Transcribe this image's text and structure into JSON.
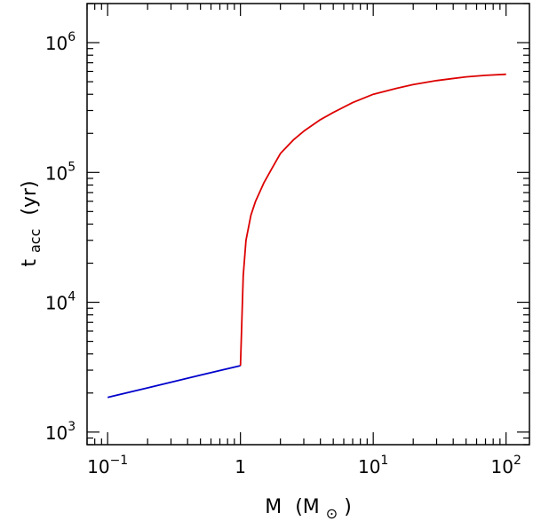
{
  "chart_data": {
    "type": "line",
    "xscale": "log",
    "yscale": "log",
    "xlim": [
      0.07,
      150
    ],
    "ylim": [
      800,
      2000000
    ],
    "xlabel": {
      "base": "M",
      "open": "(M",
      "subscript": "⊙",
      "close": ")"
    },
    "ylabel": {
      "base": "t",
      "subscript": "acc",
      "unit": "(yr)"
    },
    "x_ticks": [
      {
        "value": 0.1,
        "base": "10",
        "exp": "−1"
      },
      {
        "value": 1,
        "base": "1",
        "exp": ""
      },
      {
        "value": 10,
        "base": "10",
        "exp": "1"
      },
      {
        "value": 100,
        "base": "10",
        "exp": "2"
      }
    ],
    "y_ticks": [
      {
        "value": 1000,
        "base": "10",
        "exp": "3"
      },
      {
        "value": 10000,
        "base": "10",
        "exp": "4"
      },
      {
        "value": 100000,
        "base": "10",
        "exp": "5"
      },
      {
        "value": 1000000,
        "base": "10",
        "exp": "6"
      }
    ],
    "grid": false,
    "series": [
      {
        "color": "#0000cc",
        "x": [
          0.1,
          0.2,
          0.5,
          1.0
        ],
        "y": [
          1850,
          2190,
          2750,
          3250
        ]
      },
      {
        "color": "#dd0000",
        "x": [
          1.0,
          1.02,
          1.05,
          1.1,
          1.2,
          1.3,
          1.5,
          1.75,
          2.0,
          2.5,
          3.0,
          4.0,
          5.0,
          7.0,
          10,
          15,
          20,
          30,
          50,
          70,
          100
        ],
        "y": [
          3250,
          6000,
          16000,
          30000,
          47000,
          60000,
          83000,
          110000,
          140000,
          178000,
          208000,
          255000,
          290000,
          345000,
          400000,
          445000,
          475000,
          510000,
          545000,
          560000,
          570000
        ]
      }
    ]
  }
}
